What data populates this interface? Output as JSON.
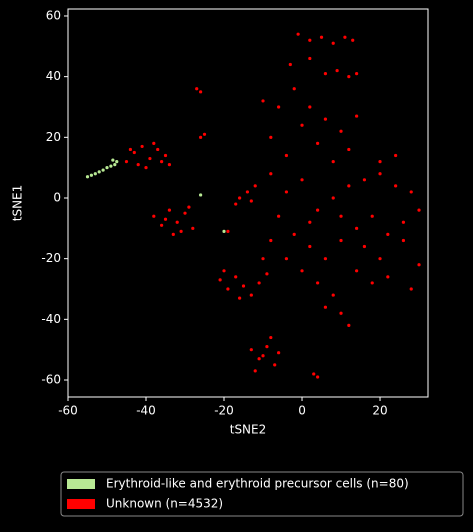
{
  "chart_data": {
    "type": "scatter",
    "xlabel": "tSNE2",
    "ylabel": "tSNE1",
    "xlim": [
      -60,
      32.3
    ],
    "ylim": [
      -65.6,
      62.3
    ],
    "xticks": [
      -60,
      -40,
      -20,
      0,
      20
    ],
    "yticks": [
      -60,
      -40,
      -20,
      0,
      20,
      40,
      60
    ],
    "legend": "bottom",
    "series": [
      {
        "name": "Erythroid-like and erythroid precursor cells (n=80)",
        "color": "#b8e994",
        "x": [
          -55,
          -54,
          -53,
          -52,
          -51,
          -50,
          -49,
          -48,
          -47.5,
          -26,
          -20,
          -48.5
        ],
        "y": [
          7,
          7.5,
          8,
          8.6,
          9.2,
          10,
          10.5,
          11,
          12,
          1,
          -11,
          12.5
        ]
      },
      {
        "name": "Unknown (n=4532)",
        "color": "#ff0000",
        "x": [
          -45,
          -43,
          -41,
          -39,
          -37,
          -35,
          -34,
          -40,
          -44,
          -42,
          -38,
          -36,
          -38,
          -36,
          -34,
          -32,
          -30,
          -28,
          -33,
          -29,
          -35,
          -31,
          -27,
          -26,
          -26,
          -25,
          -19,
          -16,
          -14,
          -17,
          -13,
          -21,
          -19,
          -17,
          -15,
          -13,
          -11,
          -9,
          -20,
          -16,
          -13,
          -11,
          -9,
          -7,
          -12,
          -8,
          -10,
          -6,
          3,
          4,
          -1,
          2,
          5,
          8,
          11,
          13,
          -3,
          2,
          6,
          9,
          12,
          14,
          -10,
          -6,
          -2,
          2,
          6,
          10,
          14,
          -8,
          -4,
          0,
          4,
          8,
          12,
          -12,
          -8,
          -4,
          0,
          4,
          8,
          12,
          16,
          20,
          24,
          28,
          30,
          26,
          22,
          18,
          14,
          10,
          20,
          24,
          16,
          20,
          26,
          30,
          22,
          28,
          18,
          -6,
          -2,
          2,
          -4,
          0,
          4,
          8,
          10,
          6,
          12,
          -8,
          -10,
          2,
          6,
          10,
          14
        ],
        "y": [
          12,
          15,
          17,
          13,
          16,
          14,
          11,
          10,
          16,
          11,
          18,
          12,
          -6,
          -9,
          -4,
          -8,
          -5,
          -10,
          -12,
          -3,
          -7,
          -11,
          36,
          35,
          20,
          21,
          -11,
          0,
          2,
          -2,
          -1,
          -27,
          -30,
          -26,
          -29,
          -32,
          -28,
          -25,
          -24,
          -33,
          -50,
          -53,
          -49,
          -55,
          -57,
          -46,
          -52,
          -51,
          -58,
          -59,
          54,
          52,
          53,
          51,
          53,
          52,
          44,
          46,
          41,
          42,
          40,
          41,
          32,
          30,
          36,
          30,
          26,
          22,
          27,
          20,
          14,
          24,
          18,
          12,
          16,
          4,
          8,
          2,
          6,
          -4,
          0,
          4,
          6,
          8,
          4,
          2,
          -4,
          -8,
          -12,
          -6,
          -10,
          -6,
          12,
          14,
          -16,
          -20,
          -14,
          -22,
          -26,
          -30,
          -28,
          -6,
          -12,
          -16,
          -20,
          -24,
          -28,
          -32,
          -38,
          -36,
          -42,
          -14,
          -20,
          -8,
          -20,
          -14,
          -24
        ]
      }
    ]
  }
}
